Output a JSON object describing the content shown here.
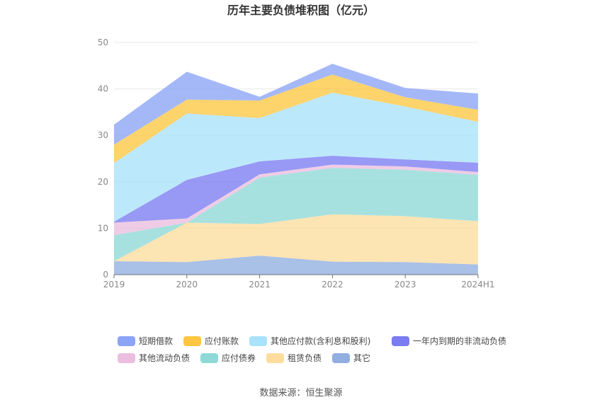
{
  "colors": {
    "短期借款": "#8ba4f6",
    "应付账款": "#fcc642",
    "其他应付款(含利息和股利)": "#a9e2fb",
    "一年内到期的非流动负债": "#7b7bf2",
    "其他流动负债": "#ebbedf",
    "应付债券": "#8ed9d6",
    "租赁负债": "#fddc9d",
    "其它": "#91aee0"
  },
  "chart_data": {
    "type": "area",
    "stacked": true,
    "title": "历年主要负债堆积图（亿元）",
    "categories": [
      "2019",
      "2020",
      "2021",
      "2022",
      "2023",
      "2024H1"
    ],
    "ylim": [
      0,
      50
    ],
    "yticks": [
      0,
      10,
      20,
      30,
      40,
      50
    ],
    "grid": true,
    "legend_position": "bottom",
    "series": [
      {
        "name": "其它",
        "values": [
          2.9,
          2.7,
          4.1,
          2.8,
          2.7,
          2.2
        ]
      },
      {
        "name": "租赁负债",
        "values": [
          0.0,
          8.5,
          6.8,
          10.2,
          9.9,
          9.3
        ]
      },
      {
        "name": "应付债券",
        "values": [
          5.6,
          0.0,
          10.0,
          10.0,
          10.0,
          10.0
        ]
      },
      {
        "name": "其他流动负债",
        "values": [
          2.7,
          0.9,
          0.7,
          0.7,
          0.7,
          0.6
        ]
      },
      {
        "name": "一年内到期的非流动负债",
        "values": [
          0.2,
          8.3,
          2.8,
          1.9,
          1.5,
          2.0
        ]
      },
      {
        "name": "其他应付款(含利息和股利)",
        "values": [
          12.6,
          14.3,
          9.3,
          13.6,
          11.4,
          8.8
        ]
      },
      {
        "name": "应付账款",
        "values": [
          4.0,
          3.0,
          3.8,
          3.9,
          2.0,
          2.6
        ]
      },
      {
        "name": "短期借款",
        "values": [
          4.3,
          6.0,
          0.8,
          2.3,
          2.0,
          3.5
        ]
      }
    ],
    "legend_order": [
      "短期借款",
      "应付账款",
      "其他应付款(含利息和股利)",
      "一年内到期的非流动负债",
      "其他流动负债",
      "应付债券",
      "租赁负债",
      "其它"
    ]
  },
  "source_text": "数据来源：恒生聚源"
}
